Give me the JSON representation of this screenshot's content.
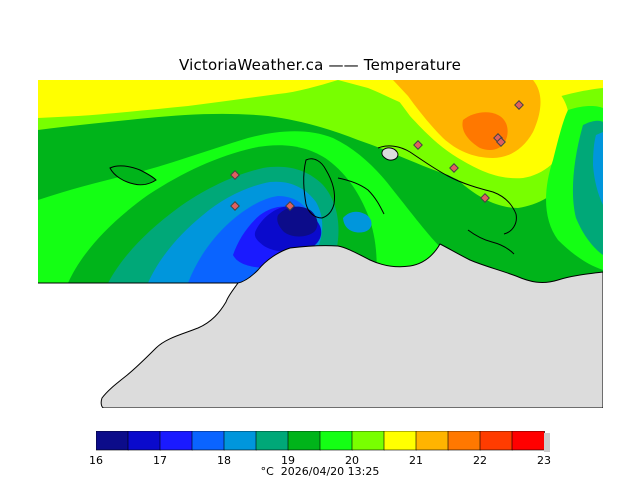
{
  "title": "VictoriaWeather.ca  —— Temperature",
  "legend": {
    "unit": "°C",
    "timestamp": "2026/04/20 13:25",
    "ticks": [
      "16",
      "17",
      "18",
      "19",
      "20",
      "21",
      "22",
      "23"
    ],
    "colors": [
      "#0c0c8a",
      "#0a0acc",
      "#1a1aff",
      "#0a64ff",
      "#0096dc",
      "#00a878",
      "#00b41a",
      "#14ff14",
      "#78ff00",
      "#ffff00",
      "#ffb400",
      "#ff7800",
      "#ff3c00",
      "#ff0000"
    ]
  },
  "map": {
    "land_color": "#dcdcdc",
    "coast_color": "#000000",
    "background_color": "#00b41a",
    "station_marker_color": "#e06060",
    "station_count": 9
  }
}
